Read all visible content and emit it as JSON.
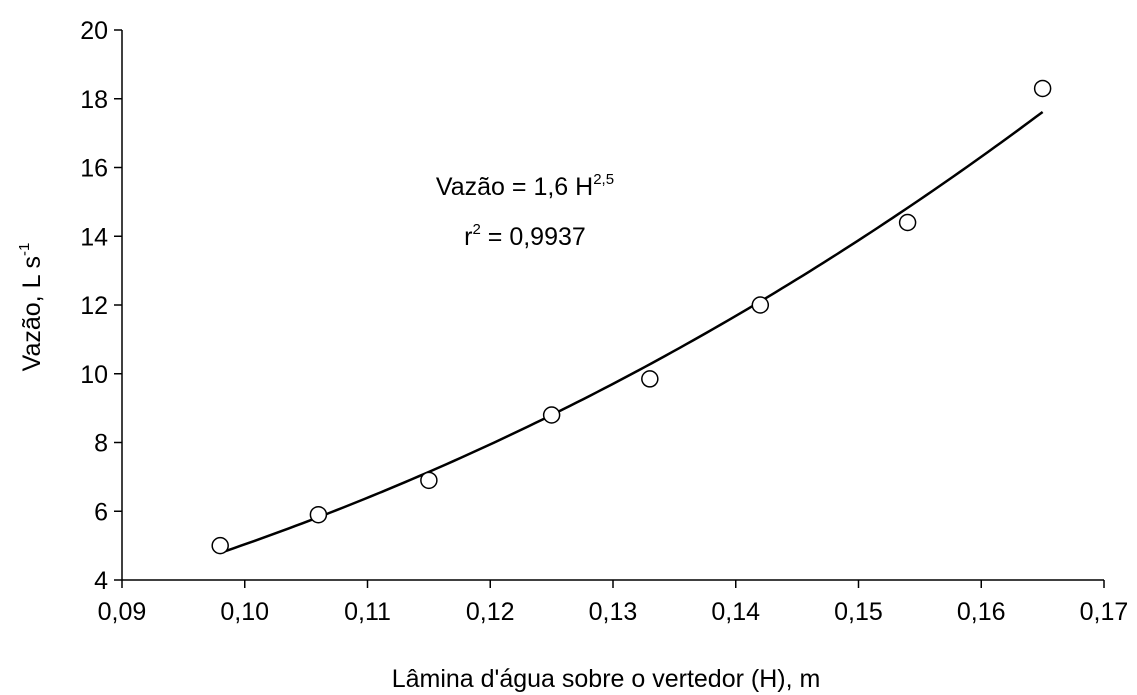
{
  "chart_data": {
    "type": "scatter",
    "title": "",
    "xlabel": "Lâmina d'água sobre o vertedor (H), m",
    "ylabel": {
      "main": "Vazão, L s",
      "sup": "-1"
    },
    "xlim": [
      0.09,
      0.17
    ],
    "ylim": [
      4,
      20
    ],
    "x_ticks": [
      "0,09",
      "0,10",
      "0,11",
      "0,12",
      "0,13",
      "0,14",
      "0,15",
      "0,16",
      "0,17"
    ],
    "y_ticks": [
      "4",
      "6",
      "8",
      "10",
      "12",
      "14",
      "16",
      "18",
      "20"
    ],
    "grid": false,
    "legend": "none",
    "series": [
      {
        "marker": "open-circle",
        "x": [
          0.098,
          0.106,
          0.115,
          0.125,
          0.133,
          0.142,
          0.154,
          0.165
        ],
        "y": [
          5.0,
          5.9,
          6.9,
          8.8,
          9.85,
          12.0,
          14.4,
          18.3
        ]
      }
    ],
    "fit": {
      "type": "power",
      "coefficient": 1.6,
      "exponent": 2.5,
      "x_range": [
        0.098,
        0.165
      ],
      "color": "#000000"
    },
    "annotations": {
      "equation": {
        "prefix": "Vazão = 1,6 H",
        "sup": "2,5"
      },
      "r2": {
        "prefix": "r",
        "sup": "2",
        "suffix": " = 0,9937"
      }
    }
  }
}
